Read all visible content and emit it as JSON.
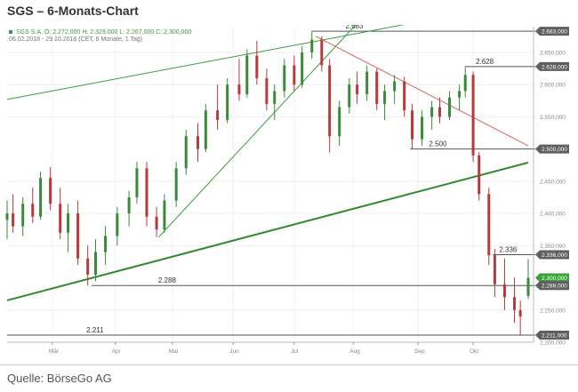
{
  "title": "SGS – 6-Monats-Chart",
  "source": "Quelle: BörseGo AG",
  "chart_data": {
    "type": "candlestick",
    "header_line1": "SGS S.A.  O: 2.272,000  H: 2.329,000  L: 2.267,000  C: 2.300,000",
    "header_line2": "06.02.2018 - 29.10.2018  (CET, 6 Monate, 1 Tag)",
    "x_axis": {
      "start_date": "2018-02-06",
      "end_date": "2018-10-29",
      "month_labels": [
        {
          "label": "Mär",
          "date": "2018-03-01"
        },
        {
          "label": "Apr",
          "date": "2018-04-02"
        },
        {
          "label": "Mai",
          "date": "2018-05-01"
        },
        {
          "label": "Jun",
          "date": "2018-06-01"
        },
        {
          "label": "Jul",
          "date": "2018-07-02"
        },
        {
          "label": "Aug",
          "date": "2018-08-01"
        },
        {
          "label": "Sep",
          "date": "2018-09-03"
        },
        {
          "label": "Okt",
          "date": "2018-10-01"
        }
      ]
    },
    "y_axis": {
      "range": [
        2200,
        2690
      ],
      "ticks": [
        {
          "value": 2683,
          "label": "2.683,000",
          "boxed": true
        },
        {
          "value": 2650,
          "label": "2.650,000",
          "boxed": false
        },
        {
          "value": 2628,
          "label": "2.628,000",
          "boxed": true
        },
        {
          "value": 2600,
          "label": "2.600,000",
          "boxed": false
        },
        {
          "value": 2550,
          "label": "2.550,000",
          "boxed": false
        },
        {
          "value": 2500,
          "label": "2.500,000",
          "boxed": true
        },
        {
          "value": 2450,
          "label": "2.450,000",
          "boxed": false
        },
        {
          "value": 2400,
          "label": "2.400,000",
          "boxed": false
        },
        {
          "value": 2350,
          "label": "2.350,000",
          "boxed": false
        },
        {
          "value": 2336,
          "label": "2.336,000",
          "boxed": true
        },
        {
          "value": 2300,
          "label": "2.300,000",
          "boxed": true,
          "current": true
        },
        {
          "value": 2288,
          "label": "2.288,000",
          "boxed": true
        },
        {
          "value": 2250,
          "label": "2.250,000",
          "boxed": false
        },
        {
          "value": 2211,
          "label": "2.211,000",
          "boxed": true
        },
        {
          "value": 2200,
          "label": "2.200,000",
          "boxed": false
        }
      ]
    },
    "horizontal_levels": [
      {
        "value": 2683,
        "label": "2.683",
        "from": "2018-07-11"
      },
      {
        "value": 2628,
        "label": "2.628",
        "from": "2018-09-27"
      },
      {
        "value": 2500,
        "label": "2.500",
        "from": "2018-08-30"
      },
      {
        "value": 2336,
        "label": "2.336",
        "from": "2018-10-11"
      },
      {
        "value": 2288,
        "label": "2.288",
        "from": "2018-03-21"
      },
      {
        "value": 2211,
        "label": "2.211",
        "from": "2018-02-06"
      }
    ],
    "trend_lines": [
      {
        "color": "#3a9d3a",
        "width": 1,
        "from": {
          "date": "2018-02-06",
          "value": 2577
        },
        "to": {
          "date": "2018-08-30",
          "value": 2695
        }
      },
      {
        "color": "#3a9d3a",
        "width": 1,
        "from": {
          "date": "2018-04-24",
          "value": 2363
        },
        "to": {
          "date": "2018-08-06",
          "value": 2705
        }
      },
      {
        "color": "#2e8b2e",
        "width": 2,
        "from": {
          "date": "2018-02-06",
          "value": 2265
        },
        "to": {
          "date": "2018-10-29",
          "value": 2479
        }
      },
      {
        "color": "#e06060",
        "width": 1,
        "from": {
          "date": "2018-07-13",
          "value": 2675
        },
        "to": {
          "date": "2018-10-29",
          "value": 2505
        }
      }
    ],
    "candles": [
      {
        "date": "2018-02-06",
        "open": 2390,
        "high": 2420,
        "low": 2360,
        "close": 2400
      },
      {
        "date": "2018-02-09",
        "open": 2400,
        "high": 2430,
        "low": 2370,
        "close": 2380
      },
      {
        "date": "2018-02-14",
        "open": 2380,
        "high": 2425,
        "low": 2365,
        "close": 2415
      },
      {
        "date": "2018-02-19",
        "open": 2415,
        "high": 2440,
        "low": 2385,
        "close": 2395
      },
      {
        "date": "2018-02-23",
        "open": 2395,
        "high": 2465,
        "low": 2390,
        "close": 2455
      },
      {
        "date": "2018-02-28",
        "open": 2455,
        "high": 2472,
        "low": 2405,
        "close": 2415
      },
      {
        "date": "2018-03-05",
        "open": 2415,
        "high": 2440,
        "low": 2360,
        "close": 2370
      },
      {
        "date": "2018-03-09",
        "open": 2370,
        "high": 2415,
        "low": 2340,
        "close": 2400
      },
      {
        "date": "2018-03-14",
        "open": 2400,
        "high": 2420,
        "low": 2320,
        "close": 2330
      },
      {
        "date": "2018-03-19",
        "open": 2330,
        "high": 2350,
        "low": 2288,
        "close": 2305
      },
      {
        "date": "2018-03-23",
        "open": 2305,
        "high": 2360,
        "low": 2295,
        "close": 2340
      },
      {
        "date": "2018-03-28",
        "open": 2340,
        "high": 2380,
        "low": 2320,
        "close": 2365
      },
      {
        "date": "2018-04-03",
        "open": 2365,
        "high": 2410,
        "low": 2350,
        "close": 2400
      },
      {
        "date": "2018-04-09",
        "open": 2400,
        "high": 2435,
        "low": 2380,
        "close": 2425
      },
      {
        "date": "2018-04-13",
        "open": 2425,
        "high": 2480,
        "low": 2415,
        "close": 2470
      },
      {
        "date": "2018-04-18",
        "open": 2470,
        "high": 2480,
        "low": 2380,
        "close": 2395
      },
      {
        "date": "2018-04-23",
        "open": 2395,
        "high": 2410,
        "low": 2363,
        "close": 2375
      },
      {
        "date": "2018-04-27",
        "open": 2375,
        "high": 2430,
        "low": 2370,
        "close": 2420
      },
      {
        "date": "2018-05-03",
        "open": 2420,
        "high": 2480,
        "low": 2410,
        "close": 2470
      },
      {
        "date": "2018-05-08",
        "open": 2470,
        "high": 2530,
        "low": 2460,
        "close": 2520
      },
      {
        "date": "2018-05-14",
        "open": 2520,
        "high": 2540,
        "low": 2480,
        "close": 2500
      },
      {
        "date": "2018-05-18",
        "open": 2500,
        "high": 2570,
        "low": 2495,
        "close": 2560
      },
      {
        "date": "2018-05-24",
        "open": 2560,
        "high": 2600,
        "low": 2530,
        "close": 2545
      },
      {
        "date": "2018-05-29",
        "open": 2545,
        "high": 2610,
        "low": 2540,
        "close": 2600
      },
      {
        "date": "2018-06-04",
        "open": 2600,
        "high": 2640,
        "low": 2575,
        "close": 2585
      },
      {
        "date": "2018-06-08",
        "open": 2585,
        "high": 2655,
        "low": 2580,
        "close": 2645
      },
      {
        "date": "2018-06-13",
        "open": 2645,
        "high": 2668,
        "low": 2600,
        "close": 2610
      },
      {
        "date": "2018-06-18",
        "open": 2610,
        "high": 2625,
        "low": 2560,
        "close": 2570
      },
      {
        "date": "2018-06-22",
        "open": 2570,
        "high": 2600,
        "low": 2545,
        "close": 2590
      },
      {
        "date": "2018-06-27",
        "open": 2590,
        "high": 2640,
        "low": 2580,
        "close": 2630
      },
      {
        "date": "2018-07-02",
        "open": 2630,
        "high": 2645,
        "low": 2590,
        "close": 2600
      },
      {
        "date": "2018-07-06",
        "open": 2600,
        "high": 2660,
        "low": 2595,
        "close": 2650
      },
      {
        "date": "2018-07-11",
        "open": 2650,
        "high": 2683,
        "low": 2640,
        "close": 2670
      },
      {
        "date": "2018-07-16",
        "open": 2670,
        "high": 2675,
        "low": 2620,
        "close": 2630
      },
      {
        "date": "2018-07-20",
        "open": 2630,
        "high": 2640,
        "low": 2495,
        "close": 2520
      },
      {
        "date": "2018-07-25",
        "open": 2520,
        "high": 2575,
        "low": 2505,
        "close": 2565
      },
      {
        "date": "2018-07-30",
        "open": 2565,
        "high": 2610,
        "low": 2555,
        "close": 2600
      },
      {
        "date": "2018-08-03",
        "open": 2600,
        "high": 2620,
        "low": 2570,
        "close": 2585
      },
      {
        "date": "2018-08-08",
        "open": 2585,
        "high": 2630,
        "low": 2575,
        "close": 2620
      },
      {
        "date": "2018-08-13",
        "open": 2620,
        "high": 2625,
        "low": 2560,
        "close": 2570
      },
      {
        "date": "2018-08-17",
        "open": 2570,
        "high": 2600,
        "low": 2545,
        "close": 2590
      },
      {
        "date": "2018-08-22",
        "open": 2590,
        "high": 2615,
        "low": 2570,
        "close": 2605
      },
      {
        "date": "2018-08-27",
        "open": 2605,
        "high": 2612,
        "low": 2550,
        "close": 2560
      },
      {
        "date": "2018-08-31",
        "open": 2560,
        "high": 2570,
        "low": 2500,
        "close": 2515
      },
      {
        "date": "2018-09-05",
        "open": 2515,
        "high": 2560,
        "low": 2505,
        "close": 2550
      },
      {
        "date": "2018-09-10",
        "open": 2550,
        "high": 2575,
        "low": 2530,
        "close": 2565
      },
      {
        "date": "2018-09-14",
        "open": 2565,
        "high": 2580,
        "low": 2540,
        "close": 2550
      },
      {
        "date": "2018-09-19",
        "open": 2550,
        "high": 2590,
        "low": 2545,
        "close": 2580
      },
      {
        "date": "2018-09-24",
        "open": 2580,
        "high": 2600,
        "low": 2560,
        "close": 2590
      },
      {
        "date": "2018-09-27",
        "open": 2590,
        "high": 2628,
        "low": 2580,
        "close": 2615
      },
      {
        "date": "2018-10-01",
        "open": 2615,
        "high": 2620,
        "low": 2480,
        "close": 2490
      },
      {
        "date": "2018-10-04",
        "open": 2490,
        "high": 2495,
        "low": 2420,
        "close": 2430
      },
      {
        "date": "2018-10-09",
        "open": 2430,
        "high": 2440,
        "low": 2320,
        "close": 2335
      },
      {
        "date": "2018-10-12",
        "open": 2335,
        "high": 2345,
        "low": 2270,
        "close": 2290
      },
      {
        "date": "2018-10-17",
        "open": 2290,
        "high": 2330,
        "low": 2250,
        "close": 2270
      },
      {
        "date": "2018-10-22",
        "open": 2270,
        "high": 2300,
        "low": 2230,
        "close": 2250
      },
      {
        "date": "2018-10-25",
        "open": 2250,
        "high": 2265,
        "low": 2211,
        "close": 2240
      },
      {
        "date": "2018-10-29",
        "open": 2272,
        "high": 2329,
        "low": 2267,
        "close": 2300
      }
    ],
    "colors": {
      "up": "#3a8a3a",
      "down": "#b73a3a",
      "level_line": "#555555",
      "label_box": "#5f5f5f",
      "current_box": "#3aa33a",
      "header_text": "#3a9d3a"
    }
  }
}
